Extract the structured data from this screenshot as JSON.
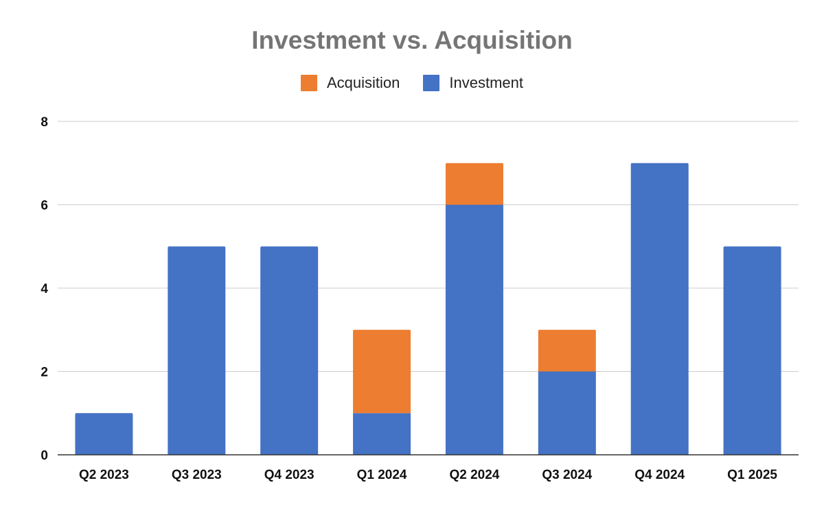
{
  "chart_data": {
    "type": "bar",
    "stacked": true,
    "title": "Investment vs. Acquisition",
    "xlabel": "",
    "ylabel": "",
    "categories": [
      "Q2 2023",
      "Q3 2023",
      "Q4 2023",
      "Q1 2024",
      "Q2 2024",
      "Q3 2024",
      "Q4 2024",
      "Q1 2025"
    ],
    "series": [
      {
        "name": "Investment",
        "color": "#4472C4",
        "values": [
          1,
          5,
          5,
          1,
          6,
          2,
          7,
          5
        ]
      },
      {
        "name": "Acquisition",
        "color": "#ED7D31",
        "values": [
          0,
          0,
          0,
          2,
          1,
          1,
          0,
          0
        ]
      }
    ],
    "legend_order": [
      "Acquisition",
      "Investment"
    ],
    "legend_position": "top",
    "ylim": [
      0,
      8
    ],
    "yticks": [
      0,
      2,
      4,
      6,
      8
    ],
    "grid": true
  }
}
